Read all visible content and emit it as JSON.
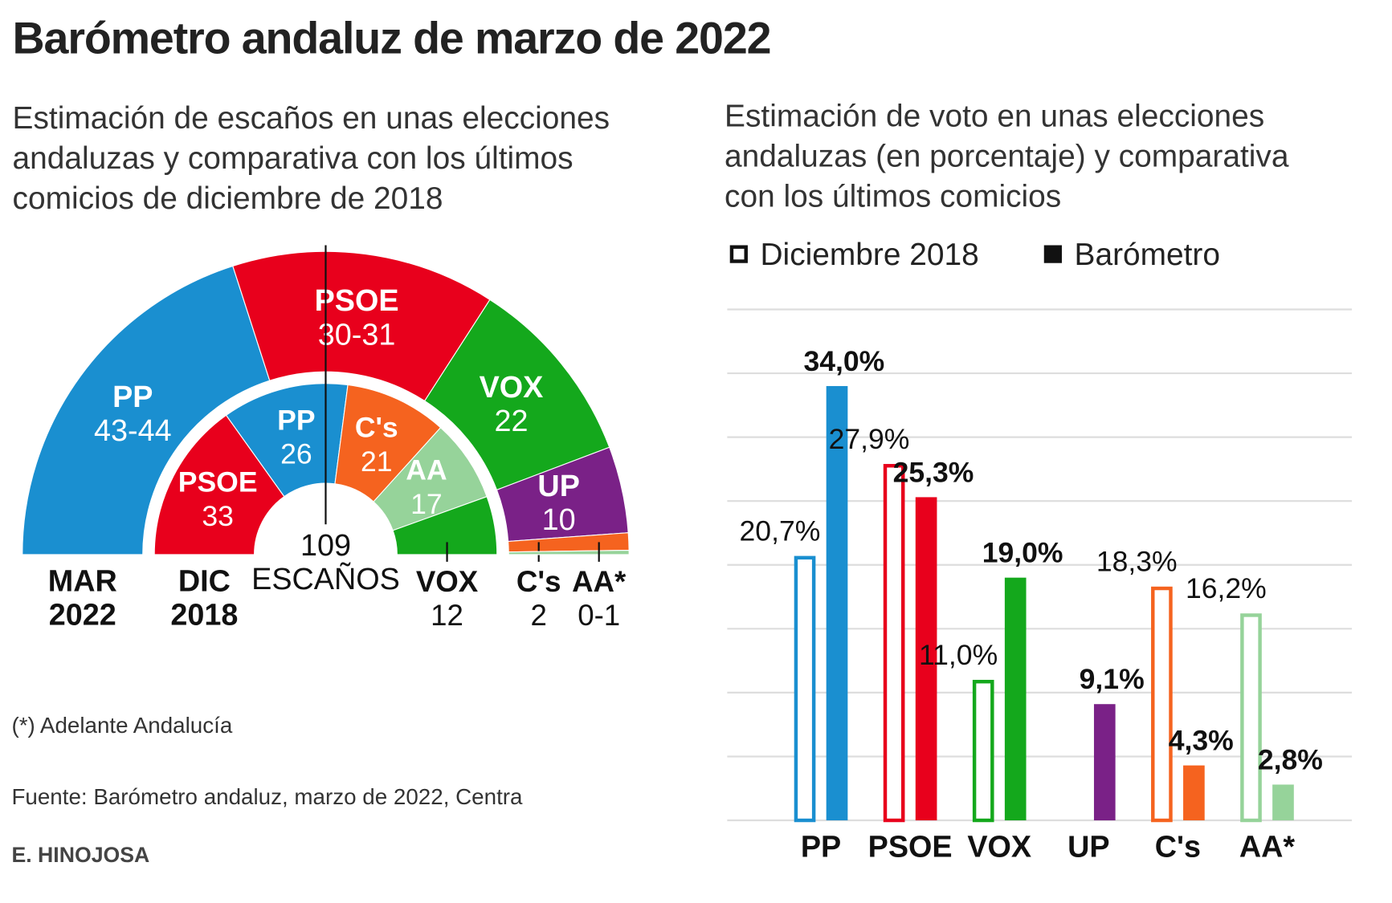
{
  "title": "Barómetro andaluz de marzo de 2022",
  "chart_data": [
    {
      "type": "parliament",
      "subtitle": "Estimación de escaños en unas elecciones andaluzas y comparativa con los últimos comicios de diciembre de 2018",
      "total": 109,
      "total_label": "ESCAÑOS",
      "rings": [
        {
          "label": [
            "MAR",
            "2022"
          ],
          "categories": [
            "PP",
            "PSOE",
            "VOX",
            "UP",
            "C's",
            "AA*"
          ],
          "values": [
            43.5,
            30.5,
            22,
            10,
            2,
            0.5
          ],
          "value_labels": [
            "43-44",
            "30-31",
            "22",
            "10",
            "2",
            "0-1"
          ],
          "colors": [
            "#1a8fd0",
            "#e8001c",
            "#14a81c",
            "#7a2187",
            "#f5631f",
            "#96d39a"
          ]
        },
        {
          "label": [
            "DIC",
            "2018"
          ],
          "categories": [
            "PSOE",
            "PP",
            "C's",
            "AA",
            "VOX"
          ],
          "values": [
            33,
            26,
            21,
            17,
            12
          ],
          "colors": [
            "#e8001c",
            "#1a8fd0",
            "#f5631f",
            "#96d39a",
            "#14a81c"
          ]
        }
      ]
    },
    {
      "type": "bar",
      "subtitle": "Estimación de voto en unas elecciones andaluzas (en porcentaje) y comparativa con los últimos comicios",
      "categories": [
        "PP",
        "PSOE",
        "VOX",
        "UP",
        "C's",
        "AA*"
      ],
      "colors": [
        "#1a8fd0",
        "#e8001c",
        "#14a81c",
        "#7a2187",
        "#f5631f",
        "#96d39a"
      ],
      "series": [
        {
          "name": "Diciembre 2018",
          "style": "outline",
          "values": [
            20.7,
            27.9,
            11.0,
            null,
            18.3,
            16.2
          ],
          "value_labels": [
            "20,7%",
            "27,9%",
            "11,0%",
            null,
            "18,3%",
            "16,2%"
          ]
        },
        {
          "name": "Barómetro",
          "style": "filled",
          "values": [
            34.0,
            25.3,
            19.0,
            9.1,
            4.3,
            2.8
          ],
          "value_labels": [
            "34,0%",
            "25,3%",
            "19,0%",
            "9,1%",
            "4,3%",
            "2,8%"
          ]
        }
      ],
      "ylim": [
        0,
        40
      ],
      "yticks": [
        0,
        5,
        10,
        15,
        20,
        25,
        30,
        35,
        40
      ],
      "grid": true
    }
  ],
  "notes": {
    "note": "(*) Adelante Andalucía",
    "source": "Fuente: Barómetro andaluz, marzo de 2022, Centra",
    "credit": "E. HINOJOSA"
  }
}
